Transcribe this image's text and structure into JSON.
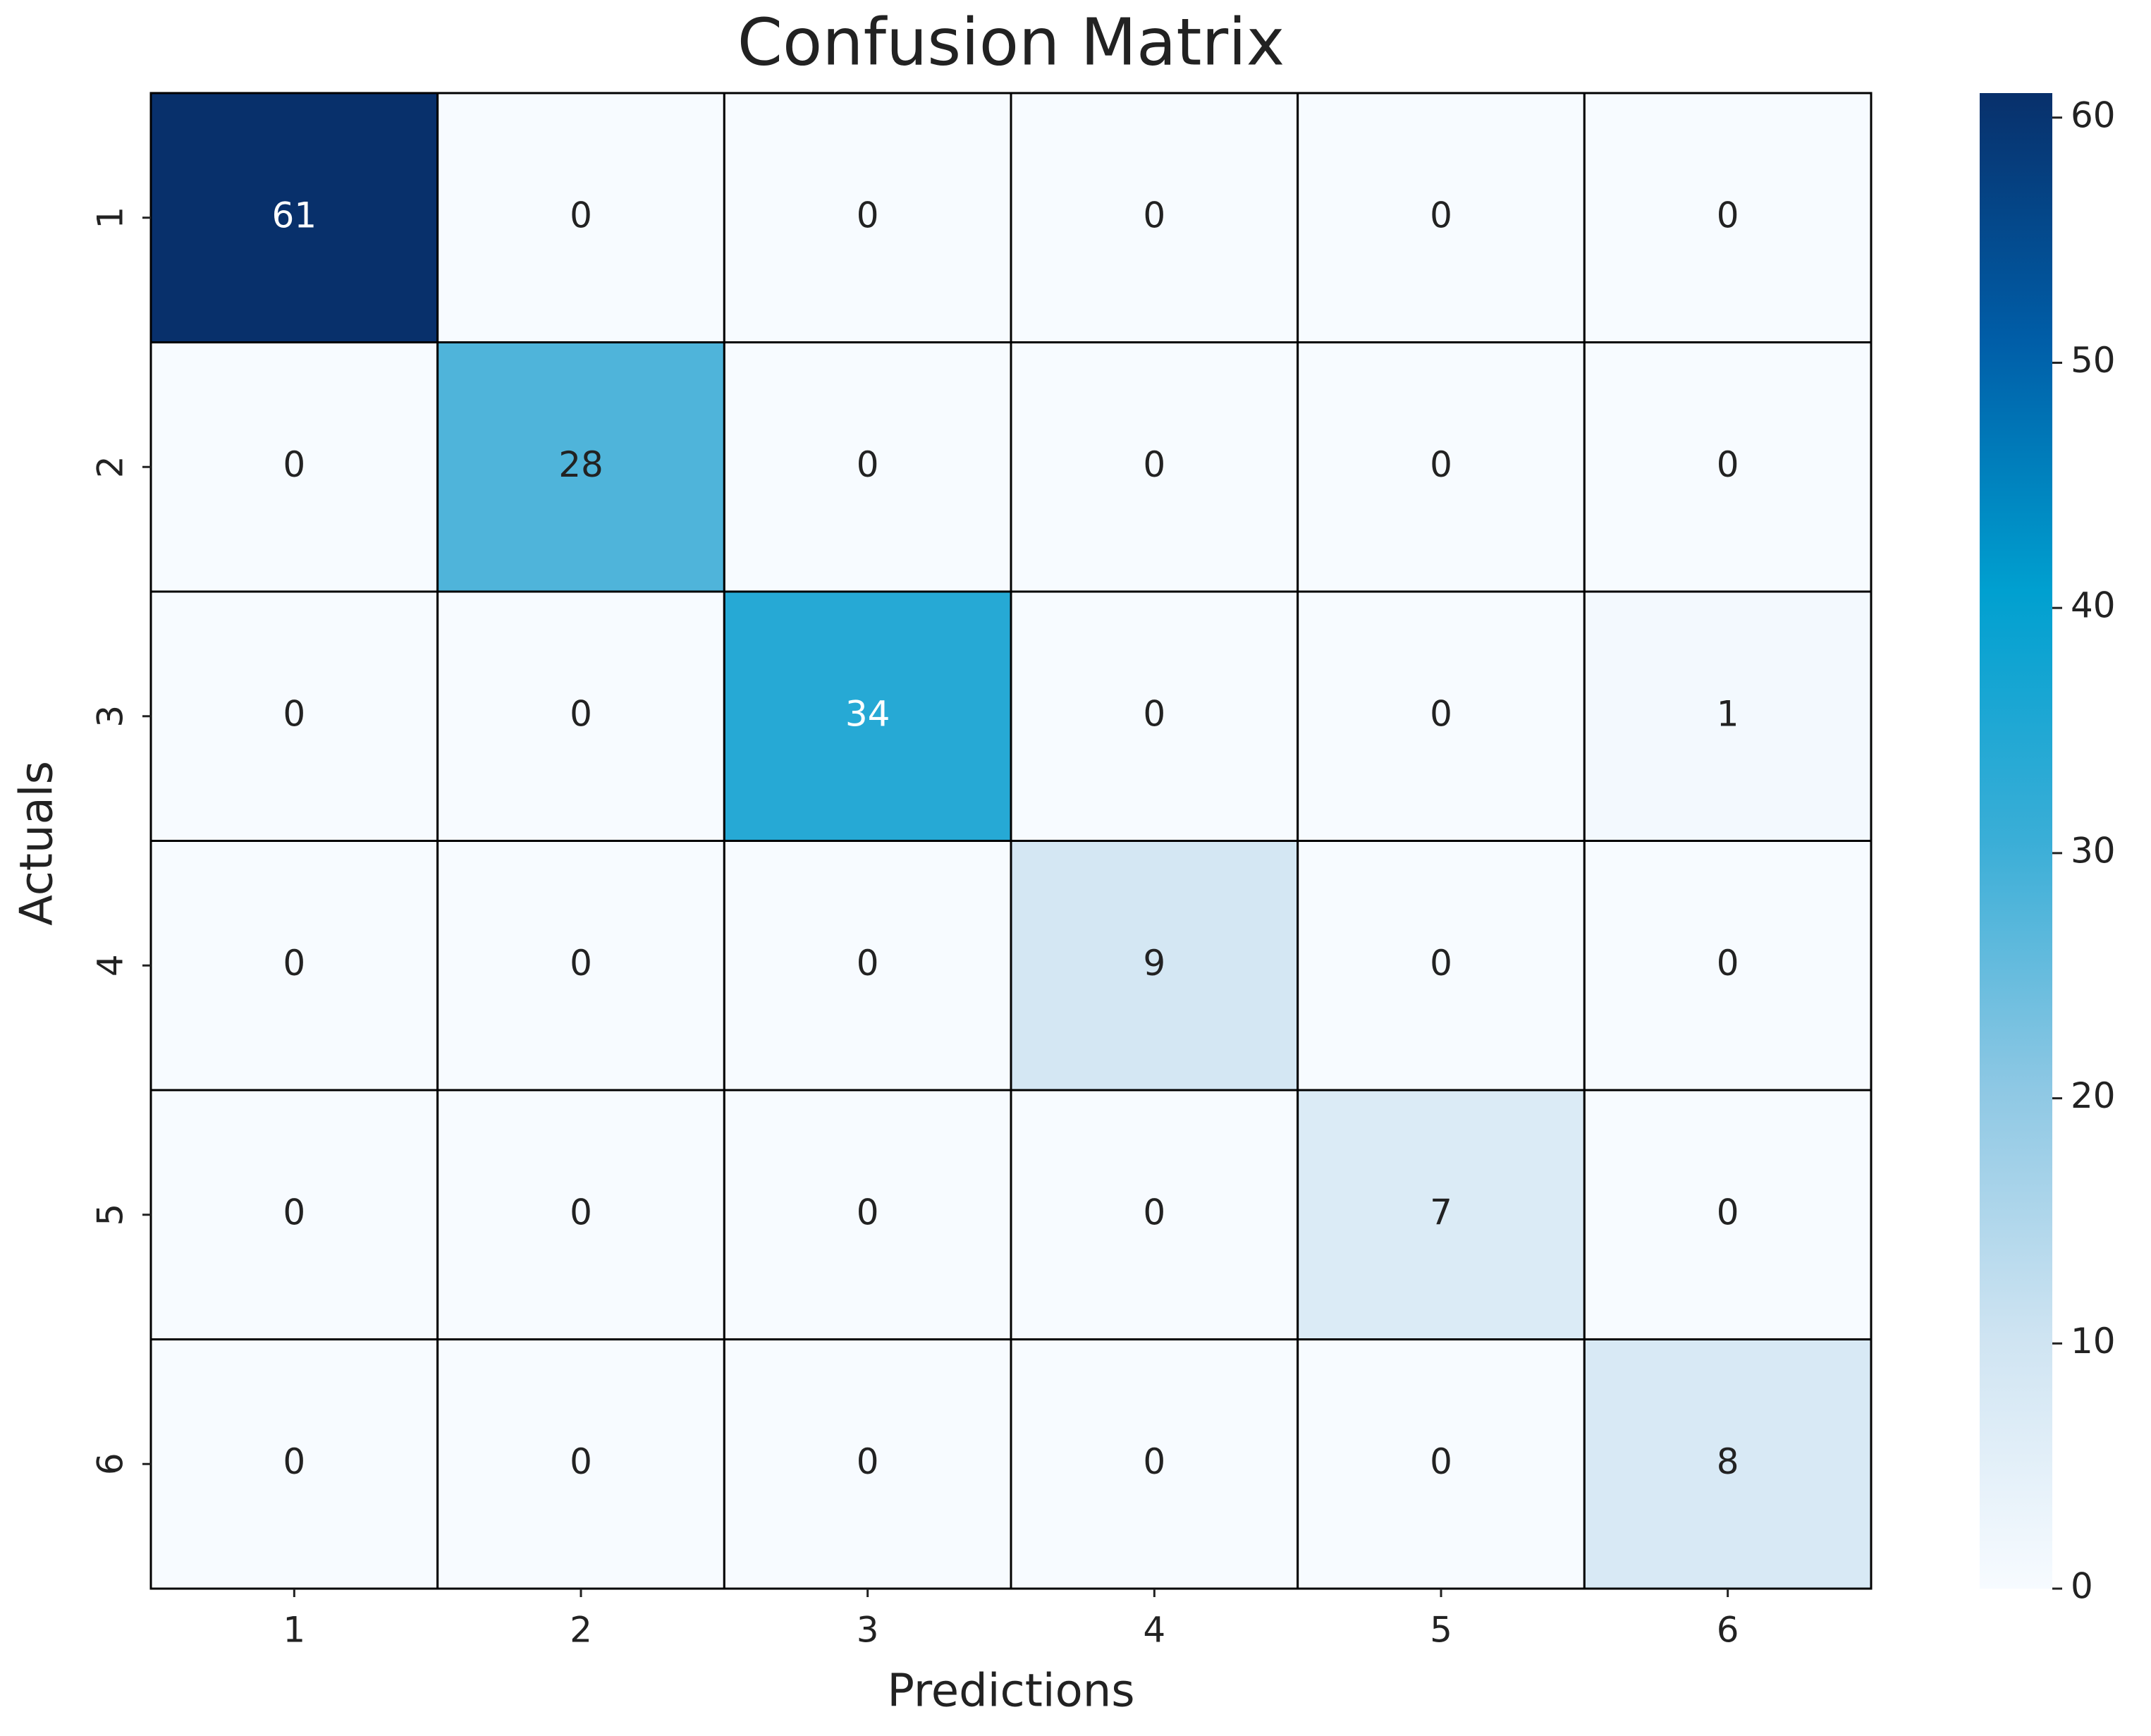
{
  "chart_data": {
    "type": "heatmap",
    "title": "Confusion Matrix",
    "xlabel": "Predictions",
    "ylabel": "Actuals",
    "x_categories": [
      "1",
      "2",
      "3",
      "4",
      "5",
      "6"
    ],
    "y_categories": [
      "1",
      "2",
      "3",
      "4",
      "5",
      "6"
    ],
    "values": [
      [
        61,
        0,
        0,
        0,
        0,
        0
      ],
      [
        0,
        28,
        0,
        0,
        0,
        0
      ],
      [
        0,
        0,
        34,
        0,
        0,
        1
      ],
      [
        0,
        0,
        0,
        9,
        0,
        0
      ],
      [
        0,
        0,
        0,
        0,
        7,
        0
      ],
      [
        0,
        0,
        0,
        0,
        0,
        8
      ]
    ],
    "colormap": [
      "#f7fbff",
      "#cfe4f2",
      "#8ec8e4",
      "#3aaed7",
      "#00a0d0",
      "#005ea8",
      "#08306b"
    ],
    "clim": [
      0,
      61
    ],
    "cticks": [
      0,
      10,
      20,
      30,
      40,
      50,
      60
    ]
  }
}
